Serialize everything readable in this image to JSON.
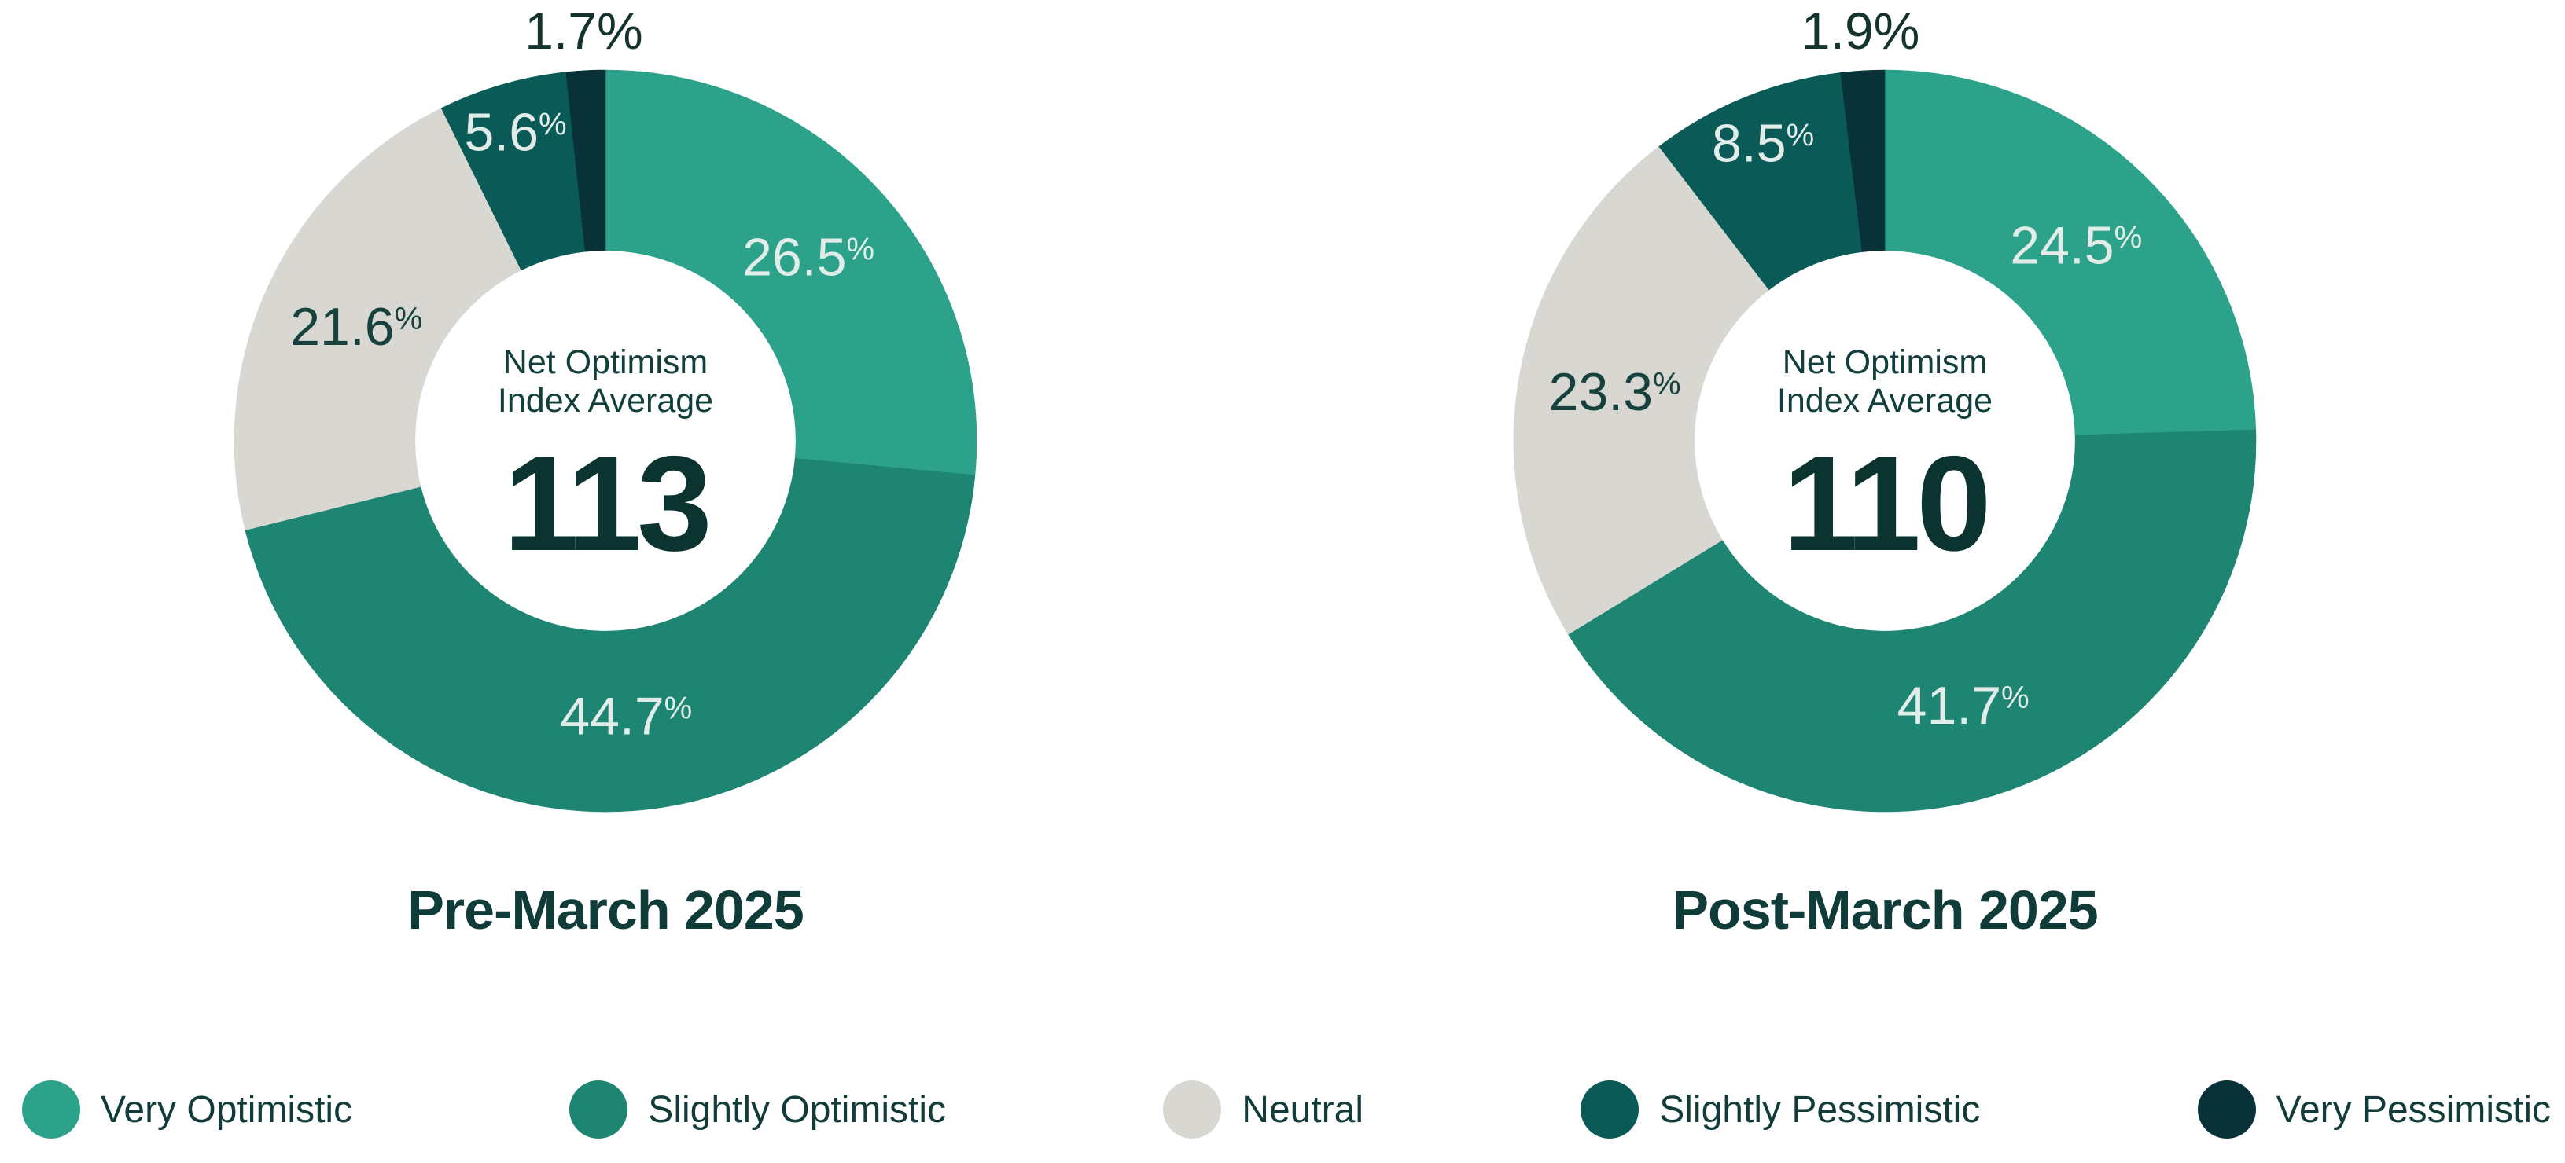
{
  "page": {
    "background": "#ffffff",
    "ink_color": "#0F3B38"
  },
  "chart_data": [
    {
      "type": "donut",
      "title": "Pre-March 2025",
      "center_label_line1": "Net Optimism",
      "center_label_line2": "Index Average",
      "center_value": "113",
      "categories": [
        "Very Optimistic",
        "Slightly Optimistic",
        "Neutral",
        "Slightly Pessimistic",
        "Very Pessimistic"
      ],
      "values": [
        26.5,
        44.7,
        21.6,
        5.6,
        1.7
      ],
      "unit": "%",
      "colors": [
        "#2CA28A",
        "#1F8573",
        "#D8D7D2",
        "#0A5B57",
        "#083238"
      ],
      "label_colors": [
        "#E2ECE8",
        "#E2ECE8",
        "#16413D",
        "#E2ECE8",
        "#16413D"
      ],
      "outside_label_color": "#14332F",
      "inner_radius_ratio": 0.513,
      "start_angle_deg": 0,
      "direction": "clockwise",
      "legend_position": "bottom"
    },
    {
      "type": "donut",
      "title": "Post-March 2025",
      "center_label_line1": "Net Optimism",
      "center_label_line2": "Index Average",
      "center_value": "110",
      "categories": [
        "Very Optimistic",
        "Slightly Optimistic",
        "Neutral",
        "Slightly Pessimistic",
        "Very Pessimistic"
      ],
      "values": [
        24.5,
        41.7,
        23.3,
        8.5,
        1.9
      ],
      "unit": "%",
      "colors": [
        "#2CA28A",
        "#1F8573",
        "#D8D7D2",
        "#0A5B57",
        "#083238"
      ],
      "label_colors": [
        "#E2ECE8",
        "#E2ECE8",
        "#16413D",
        "#E2ECE8",
        "#16413D"
      ],
      "outside_label_color": "#14332F",
      "inner_radius_ratio": 0.513,
      "start_angle_deg": 0,
      "direction": "clockwise",
      "legend_position": "bottom"
    }
  ],
  "legend": {
    "items": [
      {
        "label": "Very Optimistic",
        "color": "#2CA28A"
      },
      {
        "label": "Slightly Optimistic",
        "color": "#1F8573"
      },
      {
        "label": "Neutral",
        "color": "#D8D7D2"
      },
      {
        "label": "Slightly Pessimistic",
        "color": "#0A5B57"
      },
      {
        "label": "Very Pessimistic",
        "color": "#083238"
      }
    ]
  }
}
